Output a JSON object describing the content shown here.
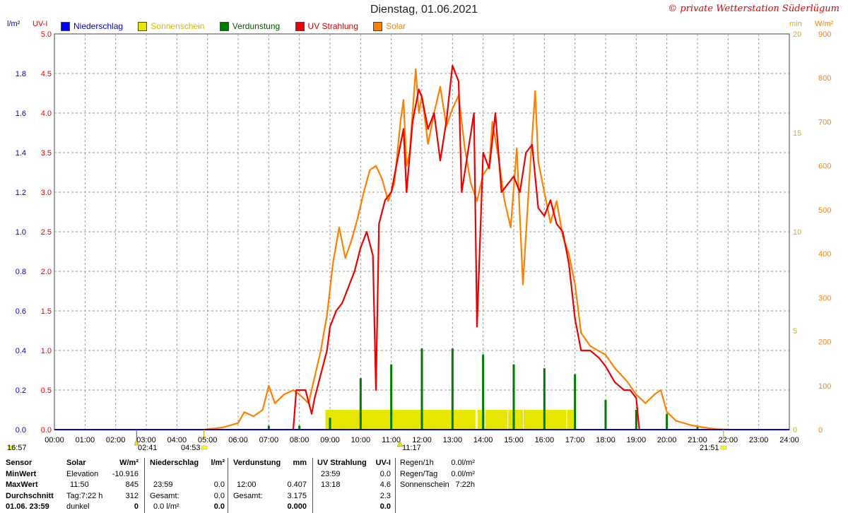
{
  "title": "Dienstag, 01.06.2021",
  "copyright": "© private Wetterstation Süderlügum",
  "legend": [
    {
      "label": "Niederschlag",
      "color": "#0000ff"
    },
    {
      "label": "Sonnenschein",
      "color": "#e6e600"
    },
    {
      "label": "Verdunstung",
      "color": "#007a00"
    },
    {
      "label": "UV Strahlung",
      "color": "#ee0000"
    },
    {
      "label": "Solar",
      "color": "#ff8000"
    }
  ],
  "units": {
    "left1": "l/m²",
    "left2": "UV-I",
    "right1": "min",
    "right2": "W/m²"
  },
  "chart_data": {
    "type": "line",
    "x_ticks": [
      "00:00",
      "01:00",
      "02:00",
      "03:00",
      "04:00",
      "05:00",
      "06:00",
      "07:00",
      "08:00",
      "09:00",
      "10:00",
      "11:00",
      "12:00",
      "13:00",
      "14:00",
      "15:00",
      "16:00",
      "17:00",
      "18:00",
      "19:00",
      "20:00",
      "21:00",
      "22:00",
      "23:00",
      "24:00"
    ],
    "axis_rain": {
      "label": "l/m²",
      "ticks": [
        "0.0",
        "0.2",
        "0.4",
        "0.6",
        "0.8",
        "1.0",
        "1.2",
        "1.4",
        "1.6",
        "1.8"
      ],
      "range": [
        0,
        2.0
      ]
    },
    "axis_uv": {
      "label": "UV-I",
      "ticks": [
        "0.0",
        "0.5",
        "1.0",
        "1.5",
        "2.0",
        "2.5",
        "3.0",
        "3.5",
        "4.0",
        "4.5",
        "5.0"
      ],
      "range": [
        0,
        5.0
      ]
    },
    "axis_min": {
      "label": "min",
      "ticks": [
        "0",
        "5",
        "10",
        "15",
        "20"
      ],
      "range": [
        0,
        20
      ]
    },
    "axis_solar": {
      "label": "W/m²",
      "ticks": [
        "0",
        "100",
        "200",
        "300",
        "400",
        "500",
        "600",
        "700",
        "800",
        "900"
      ],
      "range": [
        0,
        900
      ]
    },
    "grid": true,
    "series": [
      {
        "name": "Solar",
        "axis": "W/m²",
        "color": "#ff8000",
        "points": [
          [
            4.9,
            0
          ],
          [
            5.5,
            5
          ],
          [
            6.0,
            15
          ],
          [
            6.2,
            40
          ],
          [
            6.5,
            30
          ],
          [
            6.8,
            45
          ],
          [
            7.0,
            100
          ],
          [
            7.2,
            60
          ],
          [
            7.5,
            80
          ],
          [
            7.8,
            90
          ],
          [
            8.0,
            80
          ],
          [
            8.3,
            60
          ],
          [
            8.5,
            120
          ],
          [
            8.7,
            180
          ],
          [
            8.9,
            260
          ],
          [
            9.1,
            380
          ],
          [
            9.3,
            460
          ],
          [
            9.5,
            390
          ],
          [
            9.7,
            430
          ],
          [
            9.9,
            480
          ],
          [
            10.1,
            540
          ],
          [
            10.3,
            590
          ],
          [
            10.5,
            600
          ],
          [
            10.7,
            570
          ],
          [
            10.9,
            520
          ],
          [
            11.1,
            560
          ],
          [
            11.3,
            700
          ],
          [
            11.4,
            750
          ],
          [
            11.5,
            600
          ],
          [
            11.6,
            630
          ],
          [
            11.8,
            820
          ],
          [
            11.9,
            720
          ],
          [
            12.0,
            760
          ],
          [
            12.2,
            650
          ],
          [
            12.4,
            720
          ],
          [
            12.6,
            780
          ],
          [
            12.8,
            690
          ],
          [
            13.0,
            730
          ],
          [
            13.2,
            760
          ],
          [
            13.4,
            640
          ],
          [
            13.6,
            560
          ],
          [
            13.8,
            520
          ],
          [
            14.0,
            580
          ],
          [
            14.2,
            600
          ],
          [
            14.3,
            700
          ],
          [
            14.5,
            620
          ],
          [
            14.7,
            520
          ],
          [
            14.9,
            460
          ],
          [
            15.1,
            640
          ],
          [
            15.3,
            330
          ],
          [
            15.5,
            560
          ],
          [
            15.7,
            770
          ],
          [
            15.8,
            610
          ],
          [
            16.0,
            540
          ],
          [
            16.2,
            470
          ],
          [
            16.4,
            520
          ],
          [
            16.6,
            440
          ],
          [
            16.8,
            400
          ],
          [
            17.0,
            330
          ],
          [
            17.2,
            220
          ],
          [
            17.5,
            190
          ],
          [
            18.0,
            170
          ],
          [
            18.3,
            140
          ],
          [
            18.7,
            110
          ],
          [
            19.0,
            80
          ],
          [
            19.3,
            60
          ],
          [
            19.6,
            80
          ],
          [
            19.8,
            90
          ],
          [
            20.0,
            40
          ],
          [
            20.3,
            20
          ],
          [
            20.8,
            10
          ],
          [
            21.2,
            5
          ],
          [
            21.6,
            1
          ],
          [
            22.0,
            0
          ]
        ]
      },
      {
        "name": "UV Strahlung",
        "axis": "UV-I",
        "color": "#ee0000",
        "points": [
          [
            7.8,
            0
          ],
          [
            7.9,
            0.5
          ],
          [
            8.2,
            0.5
          ],
          [
            8.4,
            0.2
          ],
          [
            8.5,
            0.4
          ],
          [
            8.7,
            0.7
          ],
          [
            8.9,
            1.0
          ],
          [
            9.0,
            1.3
          ],
          [
            9.2,
            1.5
          ],
          [
            9.4,
            1.6
          ],
          [
            9.6,
            1.8
          ],
          [
            9.8,
            2.0
          ],
          [
            10.0,
            2.3
          ],
          [
            10.2,
            2.5
          ],
          [
            10.4,
            2.2
          ],
          [
            10.5,
            0.5
          ],
          [
            10.6,
            2.6
          ],
          [
            10.8,
            2.9
          ],
          [
            11.0,
            3.0
          ],
          [
            11.2,
            3.4
          ],
          [
            11.4,
            3.8
          ],
          [
            11.5,
            3.0
          ],
          [
            11.7,
            3.9
          ],
          [
            11.9,
            4.3
          ],
          [
            12.0,
            4.2
          ],
          [
            12.2,
            3.8
          ],
          [
            12.4,
            4.0
          ],
          [
            12.6,
            3.4
          ],
          [
            12.8,
            3.9
          ],
          [
            13.0,
            4.6
          ],
          [
            13.2,
            4.4
          ],
          [
            13.3,
            3.0
          ],
          [
            13.5,
            3.5
          ],
          [
            13.7,
            4.0
          ],
          [
            13.8,
            1.3
          ],
          [
            14.0,
            3.5
          ],
          [
            14.2,
            3.3
          ],
          [
            14.4,
            4.0
          ],
          [
            14.6,
            3.0
          ],
          [
            14.8,
            3.1
          ],
          [
            15.0,
            3.2
          ],
          [
            15.2,
            3.0
          ],
          [
            15.4,
            3.5
          ],
          [
            15.6,
            3.6
          ],
          [
            15.8,
            2.8
          ],
          [
            16.0,
            2.7
          ],
          [
            16.2,
            2.9
          ],
          [
            16.4,
            2.6
          ],
          [
            16.6,
            2.5
          ],
          [
            16.8,
            2.1
          ],
          [
            17.0,
            1.4
          ],
          [
            17.2,
            1.0
          ],
          [
            17.5,
            1.0
          ],
          [
            17.8,
            0.9
          ],
          [
            18.0,
            0.8
          ],
          [
            18.3,
            0.6
          ],
          [
            18.6,
            0.5
          ],
          [
            18.8,
            0.5
          ],
          [
            19.0,
            0.4
          ],
          [
            19.1,
            0
          ]
        ]
      },
      {
        "name": "Verdunstung",
        "axis": "l/m²",
        "color": "#007a00",
        "bars": [
          [
            7.0,
            0.02
          ],
          [
            8.0,
            0.02
          ],
          [
            9.0,
            0.06
          ],
          [
            10.0,
            0.26
          ],
          [
            11.0,
            0.33
          ],
          [
            12.0,
            0.41
          ],
          [
            13.0,
            0.41
          ],
          [
            14.0,
            0.38
          ],
          [
            15.0,
            0.33
          ],
          [
            16.0,
            0.31
          ],
          [
            17.0,
            0.28
          ],
          [
            18.0,
            0.15
          ],
          [
            19.0,
            0.1
          ],
          [
            20.0,
            0.08
          ],
          [
            21.0,
            0.02
          ]
        ]
      },
      {
        "name": "Sonnenschein",
        "axis": "min",
        "color": "#e6e600",
        "blocks": [
          [
            8.85,
            13.75,
            1.0
          ],
          [
            13.82,
            14.05,
            1.0
          ],
          [
            14.07,
            14.8,
            1.0
          ],
          [
            14.82,
            15.3,
            1.0
          ],
          [
            15.32,
            16.72,
            1.0
          ],
          [
            16.74,
            17.0,
            1.0
          ]
        ]
      },
      {
        "name": "Niederschlag",
        "axis": "l/m²",
        "color": "#0000ff",
        "values": [
          0
        ]
      }
    ]
  },
  "events": {
    "left_time": "16:57",
    "moon_rise": "02:41",
    "sunrise": "04:53",
    "noon": "11:17",
    "sunset": "21:51"
  },
  "table": {
    "labels": [
      "Sensor",
      "MinWert",
      "MaxWert",
      "Durchschnitt",
      "01.06. 23:59"
    ],
    "solar": {
      "header": "Solar",
      "unit": "W/m²",
      "rows": [
        [
          "Elevation",
          "-10.916"
        ],
        [
          "11:50",
          "845"
        ],
        [
          "Tag:7:22 h",
          "312"
        ],
        [
          "dunkel",
          "0"
        ]
      ]
    },
    "rain": {
      "header": "Niederschlag",
      "unit": "l/m²",
      "rows": [
        [
          "",
          ""
        ],
        [
          "23:59",
          "0.0"
        ],
        [
          "Gesamt:",
          "0.0"
        ],
        [
          "0.0 l/m²",
          "0.0"
        ]
      ]
    },
    "evap": {
      "header": "Verdunstung",
      "unit": "mm",
      "rows": [
        [
          "",
          ""
        ],
        [
          "12:00",
          "0.407"
        ],
        [
          "Gesamt:",
          "3.175"
        ],
        [
          "",
          "0.000"
        ]
      ]
    },
    "uv": {
      "header": "UV Strahlung",
      "unit": "UV-I",
      "rows": [
        [
          "23:59",
          "0.0"
        ],
        [
          "13:18",
          "4.6"
        ],
        [
          "",
          "2.3"
        ],
        [
          "",
          "0.0"
        ]
      ]
    },
    "regen": {
      "rows": [
        [
          "Regen/1h",
          "0.0l/m²"
        ],
        [
          "Regen/Tag",
          "0.0l/m²"
        ],
        [
          "Sonnenschein",
          "7:22h"
        ]
      ]
    }
  }
}
